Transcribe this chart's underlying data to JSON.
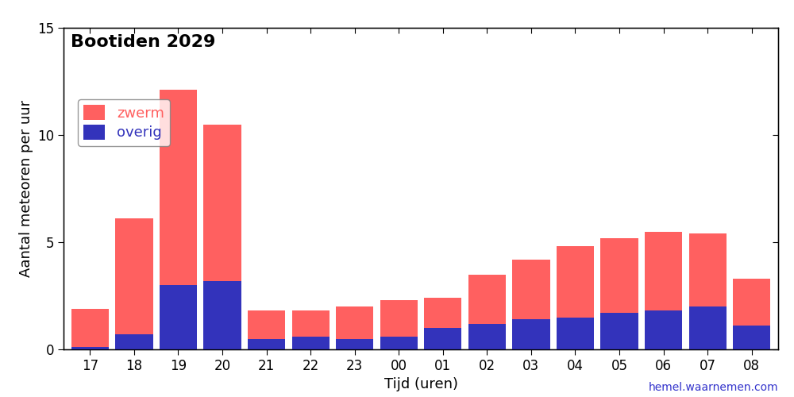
{
  "hours": [
    "17",
    "18",
    "19",
    "20",
    "21",
    "22",
    "23",
    "00",
    "01",
    "02",
    "03",
    "04",
    "05",
    "06",
    "07",
    "08"
  ],
  "zwerm": [
    1.8,
    5.4,
    9.1,
    7.3,
    1.3,
    1.2,
    1.5,
    1.7,
    1.4,
    2.3,
    2.8,
    3.3,
    3.5,
    3.7,
    3.4,
    2.2
  ],
  "overig": [
    0.1,
    0.7,
    3.0,
    3.2,
    0.5,
    0.6,
    0.5,
    0.6,
    1.0,
    1.2,
    1.4,
    1.5,
    1.7,
    1.8,
    2.0,
    1.1
  ],
  "zwerm_color": "#ff6060",
  "overig_color": "#3333bb",
  "title": "Bootiden 2029",
  "xlabel": "Tijd (uren)",
  "ylabel": "Aantal meteoren per uur",
  "ylim": [
    0,
    15
  ],
  "yticks": [
    0,
    5,
    10,
    15
  ],
  "legend_labels": [
    "zwerm",
    "overig"
  ],
  "legend_colors": [
    "#ff6060",
    "#3333bb"
  ],
  "watermark": "hemel.waarnemen.com",
  "watermark_color": "#3333cc",
  "bg_color": "#ffffff",
  "title_fontsize": 16,
  "label_fontsize": 13,
  "tick_fontsize": 12,
  "bar_width": 0.85
}
